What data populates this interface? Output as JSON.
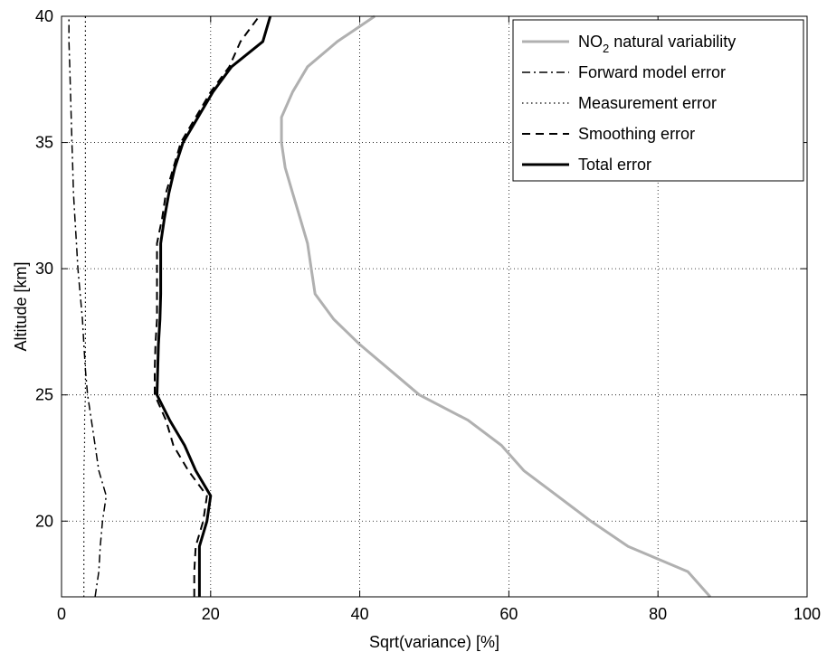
{
  "chart_data": {
    "type": "line",
    "title": "",
    "xlabel": "Sqrt(variance) [%]",
    "ylabel": "Altitude [km]",
    "xlim": [
      0,
      100
    ],
    "ylim": [
      17,
      40
    ],
    "xticks": [
      0,
      20,
      40,
      60,
      80,
      100
    ],
    "yticks": [
      20,
      25,
      30,
      35,
      40
    ],
    "grid": true,
    "legend_position": "top-right",
    "series": [
      {
        "name": "NO2 natural variability",
        "name_parts": {
          "pre": "NO",
          "sub": "2",
          "post": " natural variability"
        },
        "style": "solid",
        "color": "#b0b0b0",
        "width": 3,
        "points": [
          [
            87.0,
            17
          ],
          [
            84.0,
            18
          ],
          [
            76.0,
            19
          ],
          [
            71.0,
            20
          ],
          [
            66.5,
            21
          ],
          [
            62.0,
            22
          ],
          [
            59.0,
            23
          ],
          [
            54.5,
            24
          ],
          [
            48.0,
            25
          ],
          [
            44.0,
            26
          ],
          [
            40.0,
            27
          ],
          [
            36.5,
            28
          ],
          [
            34.0,
            29
          ],
          [
            33.5,
            30
          ],
          [
            33.0,
            31
          ],
          [
            32.0,
            32
          ],
          [
            31.0,
            33
          ],
          [
            30.0,
            34
          ],
          [
            29.5,
            35
          ],
          [
            29.5,
            36
          ],
          [
            31.0,
            37
          ],
          [
            33.0,
            38
          ],
          [
            37.0,
            39
          ],
          [
            42.0,
            40
          ]
        ]
      },
      {
        "name": "Forward model error",
        "style": "dashdot",
        "color": "#000000",
        "width": 1.5,
        "points": [
          [
            4.5,
            17
          ],
          [
            5.0,
            18
          ],
          [
            5.2,
            19
          ],
          [
            5.5,
            20
          ],
          [
            6.0,
            21
          ],
          [
            5.0,
            22
          ],
          [
            4.5,
            23
          ],
          [
            4.0,
            24
          ],
          [
            3.5,
            25
          ],
          [
            3.2,
            26
          ],
          [
            3.0,
            27
          ],
          [
            2.8,
            28
          ],
          [
            2.5,
            29
          ],
          [
            2.2,
            30
          ],
          [
            2.0,
            31
          ],
          [
            1.8,
            32
          ],
          [
            1.6,
            33
          ],
          [
            1.5,
            34
          ],
          [
            1.4,
            35
          ],
          [
            1.3,
            36
          ],
          [
            1.2,
            37
          ],
          [
            1.1,
            38
          ],
          [
            1.0,
            39
          ],
          [
            1.0,
            40
          ]
        ]
      },
      {
        "name": "Measurement error",
        "style": "dotted",
        "color": "#000000",
        "width": 1.2,
        "points": [
          [
            3.0,
            17
          ],
          [
            3.0,
            18
          ],
          [
            3.0,
            19
          ],
          [
            3.0,
            20
          ],
          [
            3.0,
            21
          ],
          [
            3.0,
            22
          ],
          [
            3.1,
            23
          ],
          [
            3.1,
            24
          ],
          [
            3.2,
            25
          ],
          [
            3.2,
            26
          ],
          [
            3.2,
            27
          ],
          [
            3.2,
            28
          ],
          [
            3.2,
            29
          ],
          [
            3.2,
            30
          ],
          [
            3.2,
            31
          ],
          [
            3.2,
            32
          ],
          [
            3.2,
            33
          ],
          [
            3.2,
            34
          ],
          [
            3.2,
            35
          ],
          [
            3.2,
            36
          ],
          [
            3.2,
            37
          ],
          [
            3.2,
            38
          ],
          [
            3.2,
            39
          ],
          [
            3.2,
            40
          ]
        ]
      },
      {
        "name": "Smoothing error",
        "style": "dashed",
        "color": "#000000",
        "width": 2,
        "points": [
          [
            17.8,
            17
          ],
          [
            17.8,
            18
          ],
          [
            18.0,
            19
          ],
          [
            19.0,
            20
          ],
          [
            19.5,
            21
          ],
          [
            17.0,
            22
          ],
          [
            15.0,
            23
          ],
          [
            14.0,
            24
          ],
          [
            12.5,
            25
          ],
          [
            12.5,
            26
          ],
          [
            12.6,
            27
          ],
          [
            12.8,
            28
          ],
          [
            12.8,
            29
          ],
          [
            12.8,
            30
          ],
          [
            12.8,
            31
          ],
          [
            13.5,
            32
          ],
          [
            14.0,
            33
          ],
          [
            15.0,
            34
          ],
          [
            16.0,
            35
          ],
          [
            18.0,
            36
          ],
          [
            20.0,
            37
          ],
          [
            22.5,
            38
          ],
          [
            24.0,
            39
          ],
          [
            26.5,
            40
          ]
        ]
      },
      {
        "name": "Total error",
        "style": "solid",
        "color": "#000000",
        "width": 3,
        "points": [
          [
            18.5,
            17
          ],
          [
            18.5,
            18
          ],
          [
            18.5,
            19
          ],
          [
            19.5,
            20
          ],
          [
            20.0,
            21
          ],
          [
            18.0,
            22
          ],
          [
            16.5,
            23
          ],
          [
            14.5,
            24
          ],
          [
            12.8,
            25
          ],
          [
            12.9,
            26
          ],
          [
            13.0,
            27
          ],
          [
            13.2,
            28
          ],
          [
            13.3,
            29
          ],
          [
            13.3,
            30
          ],
          [
            13.3,
            31
          ],
          [
            13.8,
            32
          ],
          [
            14.4,
            33
          ],
          [
            15.2,
            34
          ],
          [
            16.3,
            35
          ],
          [
            18.3,
            36
          ],
          [
            20.3,
            37
          ],
          [
            22.8,
            38
          ],
          [
            27.0,
            39
          ],
          [
            28.0,
            40
          ]
        ]
      }
    ]
  }
}
